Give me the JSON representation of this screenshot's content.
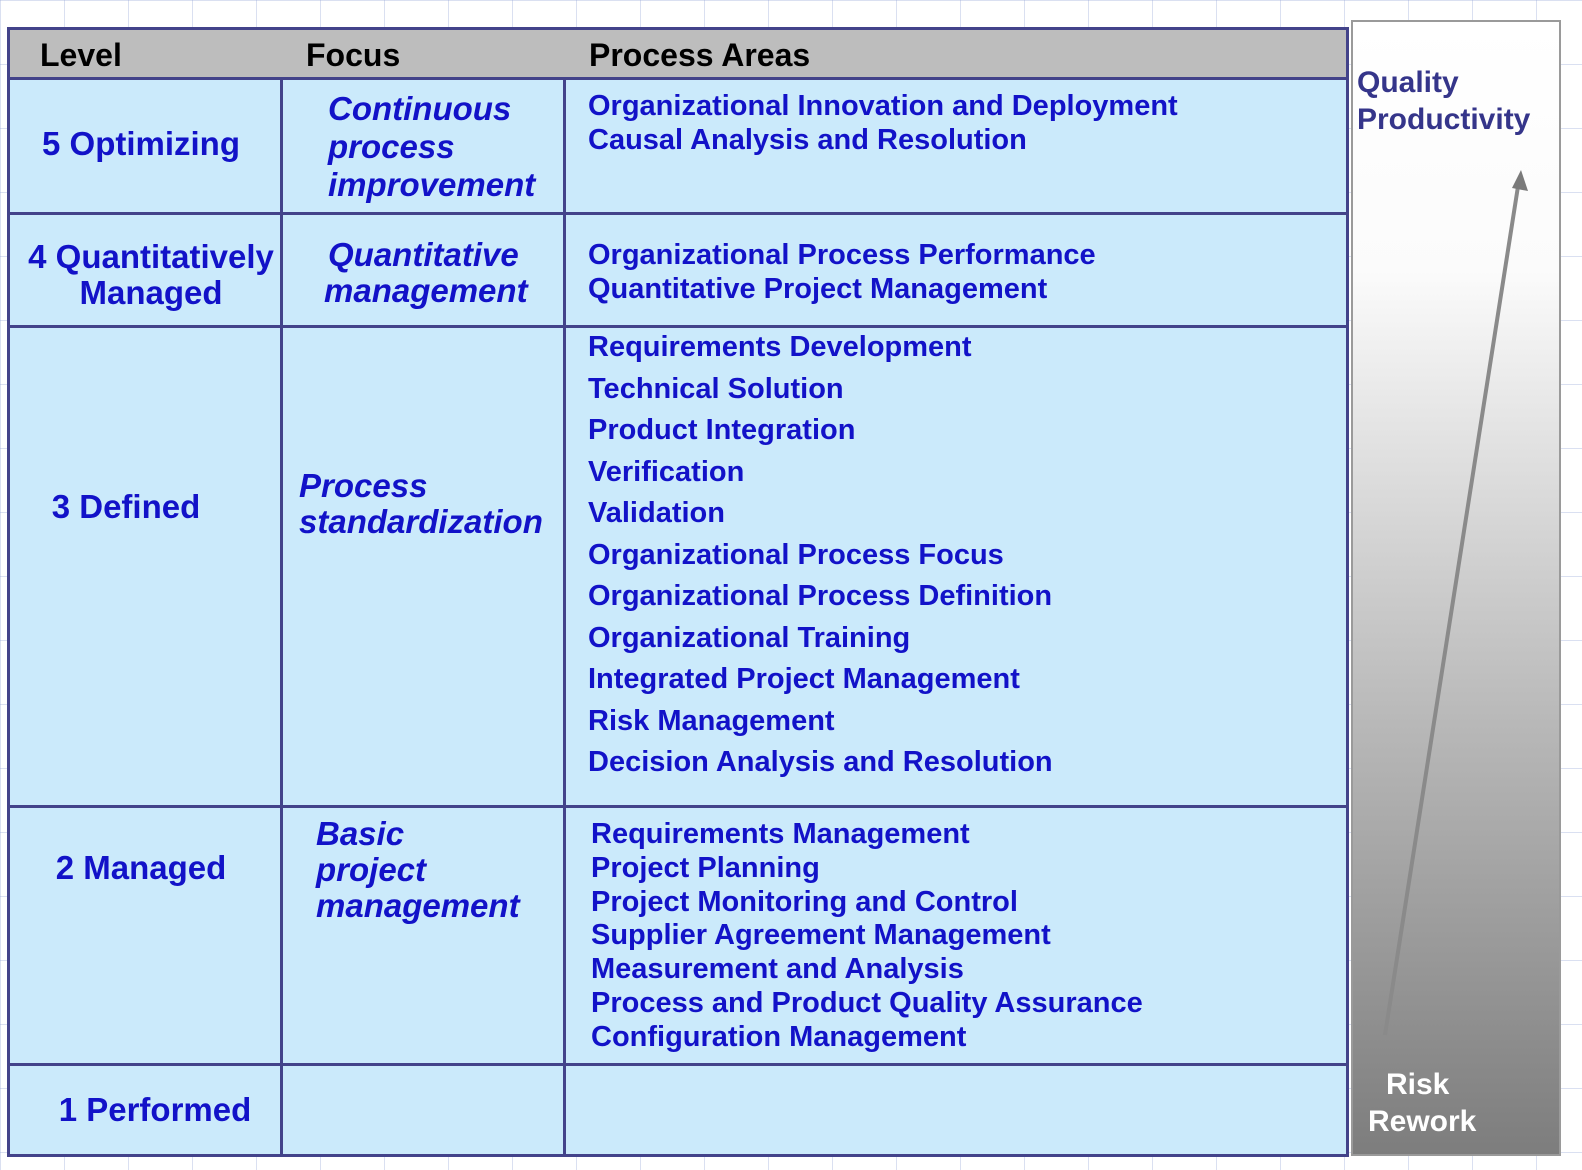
{
  "header": {
    "level": "Level",
    "focus": "Focus",
    "process_areas": "Process Areas"
  },
  "levels": [
    {
      "level_lines": [
        "5 Optimizing"
      ],
      "focus_lines": [
        "Continuous",
        "process",
        "improvement"
      ],
      "process_areas": [
        "Organizational Innovation and Deployment",
        "Causal Analysis and Resolution"
      ]
    },
    {
      "level_lines": [
        "4 Quantitatively",
        "Managed"
      ],
      "focus_lines": [
        "Quantitative",
        "management"
      ],
      "process_areas": [
        "Organizational Process Performance",
        "Quantitative Project Management"
      ]
    },
    {
      "level_lines": [
        "3 Defined"
      ],
      "focus_lines": [
        "Process",
        "standardization"
      ],
      "process_areas": [
        "Requirements Development",
        "Technical Solution",
        "Product Integration",
        "Verification",
        "Validation",
        "Organizational Process Focus",
        "Organizational Process Definition",
        "Organizational Training",
        "Integrated Project Management",
        "Risk Management",
        "Decision Analysis and Resolution"
      ]
    },
    {
      "level_lines": [
        "2 Managed"
      ],
      "focus_lines": [
        "Basic",
        "project",
        "management"
      ],
      "process_areas": [
        "Requirements Management",
        "Project Planning",
        "Project Monitoring and Control",
        "Supplier Agreement Management",
        "Measurement and Analysis",
        "Process and Product Quality Assurance",
        "Configuration Management"
      ]
    },
    {
      "level_lines": [
        "1 Performed"
      ],
      "focus_lines": [],
      "process_areas": []
    }
  ],
  "side_bar": {
    "top_labels": [
      "Quality",
      "Productivity"
    ],
    "bottom_labels": [
      "Risk",
      "Rework"
    ],
    "arrow_icon": "up-arrow-icon"
  },
  "colors": {
    "table_fill": "#cbeafb",
    "grid_line": "#43438a",
    "header_fill": "#bdbdbd",
    "body_text": "#1212c8",
    "side_top_text": "#35358a",
    "side_bottom_text": "#ffffff"
  }
}
